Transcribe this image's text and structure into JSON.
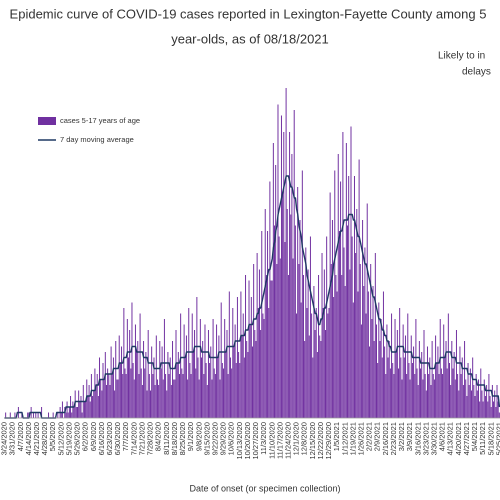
{
  "chart_data": {
    "type": "bar",
    "title": [
      "Epidemic curve of COVID-19 cases reported in Lexington-Fayette County among 5",
      "year-olds, as of 08/18/2021"
    ],
    "annotation": [
      "Likely to in",
      "delays"
    ],
    "x_label": "Date of onset (or specimen collection)",
    "ylim": [
      0,
      60
    ],
    "categories": [
      "3/24/2020",
      null,
      null,
      null,
      null,
      null,
      null,
      "3/31/2020",
      null,
      null,
      null,
      null,
      null,
      null,
      "4/7/2020",
      null,
      null,
      null,
      null,
      null,
      null,
      "4/14/2020",
      null,
      null,
      null,
      null,
      null,
      null,
      "4/21/2020",
      null,
      null,
      null,
      null,
      null,
      null,
      "4/28/2020",
      null,
      null,
      null,
      null,
      null,
      null,
      "5/5/2020",
      null,
      null,
      null,
      null,
      null,
      null,
      "5/12/2020",
      null,
      null,
      null,
      null,
      null,
      null,
      "5/19/2020",
      null,
      null,
      null,
      null,
      null,
      null,
      "5/26/2020",
      null,
      null,
      null,
      null,
      null,
      null,
      "6/2/2020",
      null,
      null,
      null,
      null,
      null,
      null,
      "6/9/2020",
      null,
      null,
      null,
      null,
      null,
      null,
      "6/16/2020",
      null,
      null,
      null,
      null,
      null,
      null,
      "6/23/2020",
      null,
      null,
      null,
      null,
      null,
      null,
      "6/30/2020",
      null,
      null,
      null,
      null,
      null,
      null,
      "7/7/2020",
      null,
      null,
      null,
      null,
      null,
      null,
      "7/14/2020",
      null,
      null,
      null,
      null,
      null,
      null,
      "7/21/2020",
      null,
      null,
      null,
      null,
      null,
      null,
      "7/28/2020",
      null,
      null,
      null,
      null,
      null,
      null,
      "8/4/2020",
      null,
      null,
      null,
      null,
      null,
      null,
      "8/11/2020",
      null,
      null,
      null,
      null,
      null,
      null,
      "8/18/2020",
      null,
      null,
      null,
      null,
      null,
      null,
      "8/25/2020",
      null,
      null,
      null,
      null,
      null,
      null,
      "9/1/2020",
      null,
      null,
      null,
      null,
      null,
      null,
      "9/8/2020",
      null,
      null,
      null,
      null,
      null,
      null,
      "9/15/2020",
      null,
      null,
      null,
      null,
      null,
      null,
      "9/22/2020",
      null,
      null,
      null,
      null,
      null,
      null,
      "9/29/2020",
      null,
      null,
      null,
      null,
      null,
      null,
      "10/6/2020",
      null,
      null,
      null,
      null,
      null,
      null,
      "10/13/2020",
      null,
      null,
      null,
      null,
      null,
      null,
      "10/20/2020",
      null,
      null,
      null,
      null,
      null,
      null,
      "10/27/2020",
      null,
      null,
      null,
      null,
      null,
      null,
      "11/3/2020",
      null,
      null,
      null,
      null,
      null,
      null,
      "11/10/2020",
      null,
      null,
      null,
      null,
      null,
      null,
      "11/17/2020",
      null,
      null,
      null,
      null,
      null,
      null,
      "11/24/2020",
      null,
      null,
      null,
      null,
      null,
      null,
      "12/1/2020",
      null,
      null,
      null,
      null,
      null,
      null,
      "12/8/2020",
      null,
      null,
      null,
      null,
      null,
      null,
      "12/15/2020",
      null,
      null,
      null,
      null,
      null,
      null,
      "12/22/2020",
      null,
      null,
      null,
      null,
      null,
      null,
      "12/29/2020",
      null,
      null,
      null,
      null,
      null,
      null,
      "1/5/2021",
      null,
      null,
      null,
      null,
      null,
      null,
      "1/12/2021",
      null,
      null,
      null,
      null,
      null,
      null,
      "1/19/2021",
      null,
      null,
      null,
      null,
      null,
      null,
      "1/26/2021",
      null,
      null,
      null,
      null,
      null,
      null,
      "2/2/2021",
      null,
      null,
      null,
      null,
      null,
      null,
      "2/9/2021",
      null,
      null,
      null,
      null,
      null,
      null,
      "2/16/2021",
      null,
      null,
      null,
      null,
      null,
      null,
      "2/23/2021",
      null,
      null,
      null,
      null,
      null,
      null,
      "3/2/2021",
      null,
      null,
      null,
      null,
      null,
      null,
      "3/9/2021",
      null,
      null,
      null,
      null,
      null,
      null,
      "3/16/2021",
      null,
      null,
      null,
      null,
      null,
      null,
      "3/23/2021",
      null,
      null,
      null,
      null,
      null,
      null,
      "3/30/2021",
      null,
      null,
      null,
      null,
      null,
      null,
      "4/6/2021",
      null,
      null,
      null,
      null,
      null,
      null,
      "4/13/2021",
      null,
      null,
      null,
      null,
      null,
      null,
      "4/20/2021",
      null,
      null,
      null,
      null,
      null,
      null,
      "4/27/2021",
      null,
      null,
      null,
      null,
      null,
      null,
      "5/4/2021",
      null,
      null,
      null,
      null,
      null,
      null,
      "5/11/2021",
      null,
      null,
      null,
      null,
      null,
      null,
      "5/18/2021",
      null,
      null,
      null,
      null,
      null,
      null,
      "5/25/2021"
    ],
    "series": [
      {
        "name": "cases 5-17 years of age",
        "type": "bar",
        "color": "#7030a0",
        "values": [
          0,
          1,
          0,
          0,
          0,
          1,
          0,
          0,
          0,
          1,
          0,
          0,
          2,
          0,
          0,
          1,
          0,
          0,
          0,
          0,
          1,
          1,
          0,
          2,
          0,
          1,
          0,
          1,
          0,
          1,
          0,
          0,
          2,
          0,
          0,
          0,
          0,
          0,
          1,
          0,
          0,
          0,
          1,
          0,
          0,
          0,
          1,
          0,
          2,
          1,
          3,
          0,
          2,
          1,
          3,
          1,
          2,
          4,
          1,
          3,
          2,
          5,
          2,
          2,
          5,
          3,
          4,
          1,
          6,
          3,
          3,
          7,
          4,
          6,
          3,
          8,
          4,
          5,
          9,
          6,
          8,
          4,
          11,
          7,
          5,
          10,
          7,
          12,
          6,
          9,
          8,
          6,
          13,
          8,
          11,
          5,
          14,
          7,
          7,
          15,
          10,
          13,
          8,
          20,
          9,
          8,
          18,
          11,
          16,
          9,
          21,
          10,
          7,
          17,
          12,
          14,
          8,
          19,
          9,
          6,
          14,
          9,
          12,
          5,
          16,
          8,
          5,
          13,
          8,
          11,
          6,
          15,
          7,
          6,
          14,
          9,
          13,
          7,
          18,
          8,
          5,
          12,
          8,
          11,
          6,
          14,
          7,
          7,
          16,
          10,
          12,
          8,
          19,
          9,
          8,
          17,
          11,
          15,
          7,
          20,
          10,
          8,
          19,
          12,
          16,
          9,
          22,
          11,
          7,
          18,
          11,
          14,
          8,
          17,
          10,
          6,
          16,
          10,
          13,
          7,
          18,
          9,
          8,
          17,
          11,
          15,
          7,
          21,
          10,
          9,
          18,
          12,
          16,
          8,
          23,
          11,
          9,
          20,
          13,
          17,
          10,
          22,
          12,
          10,
          23,
          15,
          19,
          11,
          26,
          14,
          12,
          25,
          17,
          22,
          13,
          28,
          16,
          14,
          30,
          20,
          27,
          16,
          34,
          19,
          18,
          38,
          26,
          34,
          20,
          43,
          25,
          25,
          50,
          35,
          46,
          28,
          57,
          33,
          29,
          55,
          41,
          52,
          32,
          60,
          38,
          26,
          52,
          37,
          48,
          29,
          56,
          35,
          19,
          42,
          28,
          36,
          21,
          45,
          26,
          14,
          31,
          20,
          27,
          15,
          33,
          19,
          11,
          24,
          16,
          20,
          12,
          26,
          15,
          14,
          30,
          20,
          27,
          16,
          33,
          19,
          20,
          41,
          28,
          36,
          22,
          45,
          26,
          23,
          48,
          34,
          43,
          26,
          52,
          31,
          24,
          50,
          35,
          44,
          27,
          53,
          33,
          21,
          44,
          30,
          38,
          23,
          47,
          28,
          17,
          36,
          24,
          31,
          19,
          39,
          23,
          13,
          28,
          18,
          24,
          14,
          30,
          17,
          10,
          21,
          14,
          18,
          11,
          23,
          13,
          8,
          17,
          11,
          14,
          9,
          19,
          10,
          8,
          18,
          12,
          16,
          9,
          20,
          11,
          7,
          17,
          11,
          15,
          8,
          19,
          10,
          7,
          15,
          10,
          13,
          8,
          18,
          9,
          6,
          14,
          9,
          12,
          7,
          16,
          8,
          5,
          13,
          8,
          11,
          6,
          14,
          8,
          7,
          15,
          10,
          13,
          8,
          18,
          9,
          8,
          17,
          11,
          14,
          9,
          19,
          10,
          6,
          14,
          9,
          12,
          7,
          16,
          8,
          5,
          13,
          8,
          11,
          6,
          14,
          7,
          4,
          10,
          6,
          9,
          5,
          11,
          6,
          4,
          8,
          5,
          7,
          3,
          9,
          5,
          3,
          7,
          4,
          6,
          3,
          8,
          4,
          2,
          6,
          3,
          5,
          2,
          6,
          3,
          1
        ]
      },
      {
        "name": "7 day moving average",
        "type": "line",
        "color": "#1f3864",
        "values": [
          0,
          0,
          0,
          0,
          0,
          0,
          0,
          0,
          0,
          0,
          0,
          1,
          1,
          1,
          1,
          1,
          0,
          0,
          0,
          0,
          0,
          0,
          1,
          1,
          1,
          1,
          1,
          1,
          1,
          1,
          1,
          1,
          0,
          0,
          0,
          0,
          0,
          0,
          0,
          0,
          0,
          0,
          0,
          0,
          0,
          1,
          1,
          1,
          1,
          1,
          1,
          1,
          1,
          2,
          2,
          2,
          2,
          2,
          2,
          2,
          2,
          3,
          3,
          3,
          3,
          3,
          3,
          3,
          3,
          3,
          3,
          4,
          4,
          4,
          4,
          5,
          5,
          5,
          5,
          6,
          6,
          6,
          7,
          7,
          7,
          7,
          7,
          8,
          8,
          8,
          8,
          8,
          8,
          8,
          9,
          9,
          9,
          9,
          9,
          10,
          10,
          10,
          10,
          11,
          11,
          11,
          12,
          12,
          12,
          12,
          13,
          13,
          13,
          13,
          12,
          12,
          12,
          12,
          12,
          12,
          11,
          11,
          11,
          11,
          10,
          10,
          10,
          10,
          10,
          9,
          9,
          9,
          9,
          9,
          9,
          10,
          10,
          10,
          10,
          10,
          10,
          10,
          10,
          9,
          9,
          9,
          9,
          9,
          10,
          10,
          10,
          10,
          11,
          11,
          11,
          11,
          11,
          12,
          12,
          12,
          12,
          12,
          12,
          12,
          13,
          13,
          13,
          13,
          13,
          13,
          12,
          12,
          12,
          12,
          12,
          12,
          12,
          11,
          11,
          11,
          11,
          11,
          11,
          11,
          11,
          12,
          12,
          12,
          12,
          12,
          12,
          12,
          13,
          13,
          13,
          13,
          13,
          13,
          13,
          14,
          14,
          14,
          14,
          14,
          15,
          15,
          15,
          15,
          16,
          16,
          16,
          17,
          17,
          17,
          17,
          18,
          18,
          18,
          19,
          19,
          20,
          20,
          21,
          22,
          23,
          24,
          25,
          26,
          27,
          27,
          28,
          29,
          31,
          32,
          34,
          35,
          37,
          38,
          39,
          40,
          41,
          42,
          43,
          44,
          44,
          44,
          43,
          42,
          42,
          41,
          40,
          40,
          38,
          37,
          35,
          34,
          33,
          31,
          30,
          29,
          28,
          26,
          25,
          24,
          23,
          22,
          21,
          20,
          19,
          19,
          18,
          17,
          17,
          18,
          18,
          19,
          20,
          20,
          21,
          22,
          23,
          24,
          25,
          26,
          28,
          29,
          30,
          31,
          32,
          33,
          34,
          34,
          35,
          36,
          36,
          36,
          36,
          37,
          37,
          37,
          37,
          36,
          36,
          35,
          34,
          33,
          33,
          32,
          31,
          30,
          29,
          28,
          28,
          27,
          26,
          25,
          24,
          23,
          22,
          22,
          21,
          20,
          19,
          18,
          18,
          17,
          16,
          16,
          15,
          15,
          14,
          14,
          13,
          13,
          12,
          12,
          12,
          12,
          12,
          13,
          13,
          13,
          13,
          13,
          13,
          12,
          12,
          12,
          12,
          12,
          12,
          12,
          11,
          11,
          11,
          11,
          11,
          11,
          11,
          10,
          10,
          10,
          10,
          10,
          10,
          10,
          10,
          9,
          9,
          9,
          9,
          9,
          10,
          10,
          10,
          10,
          11,
          11,
          11,
          11,
          11,
          12,
          12,
          12,
          12,
          12,
          11,
          11,
          11,
          11,
          10,
          10,
          10,
          10,
          10,
          9,
          9,
          9,
          9,
          9,
          8,
          8,
          8,
          8,
          7,
          7,
          7,
          7,
          6,
          6,
          6,
          6,
          6,
          6,
          6,
          5,
          5,
          5,
          5,
          5,
          5,
          4,
          4,
          4,
          4,
          4,
          4,
          2
        ]
      }
    ]
  }
}
